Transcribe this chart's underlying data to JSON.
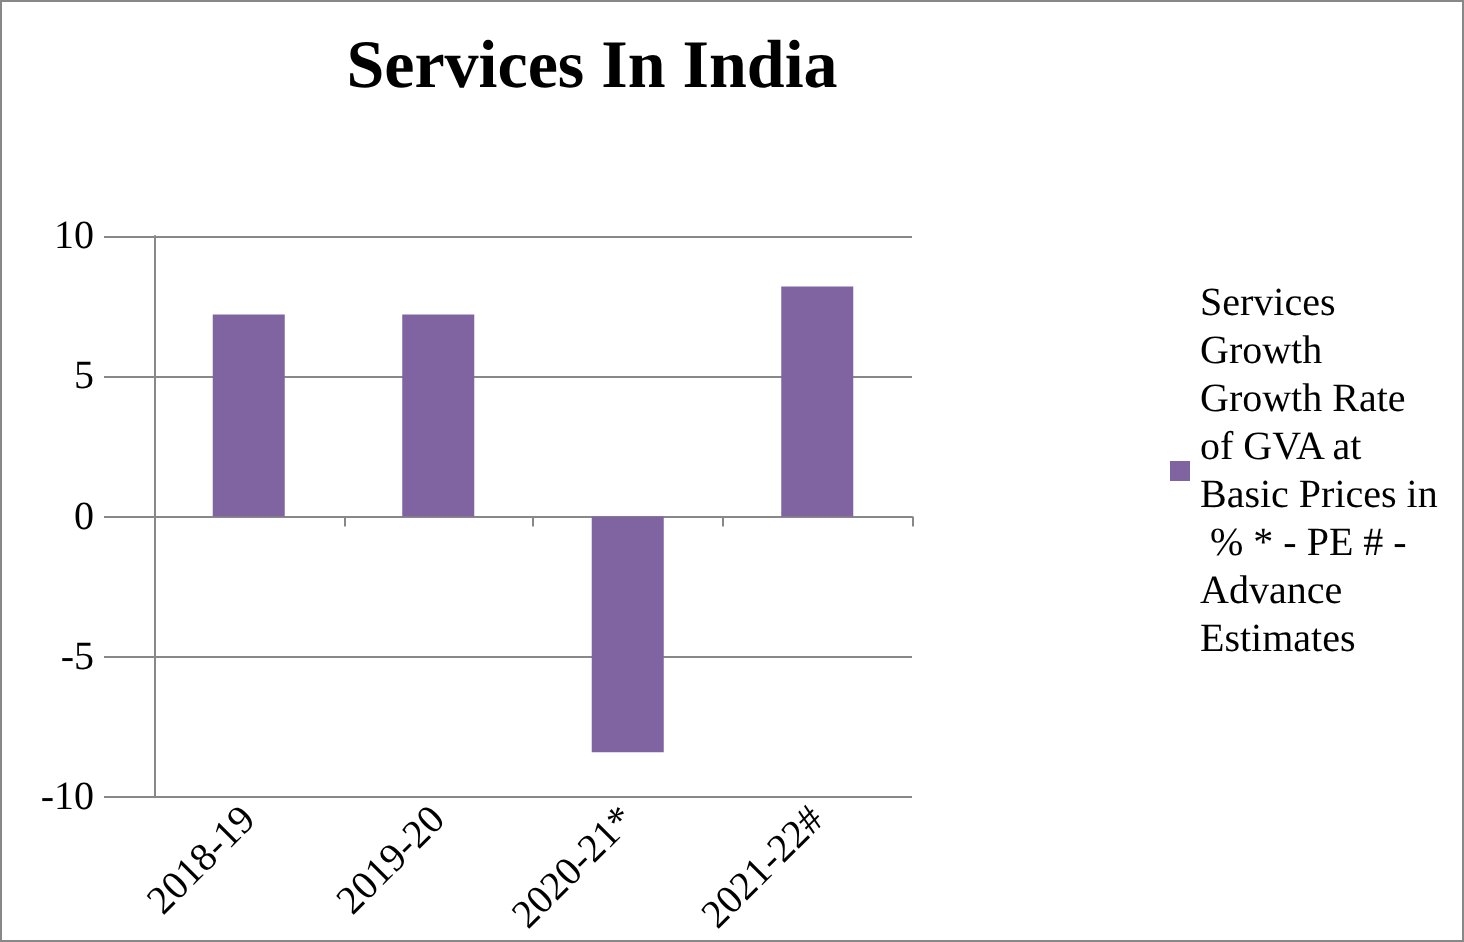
{
  "chart_data": {
    "type": "bar",
    "title": "Services In India",
    "categories": [
      "2018-19",
      "2019-20",
      "2020-21*",
      "2021-22#"
    ],
    "series": [
      {
        "name": "Services Growth Growth Rate of GVA at Basic Prices in % * - PE # - Advance Estimates",
        "color": "#8064a2",
        "values": [
          7.2,
          7.2,
          -8.4,
          8.2
        ]
      }
    ],
    "ylim": [
      -10,
      10
    ],
    "yticks": [
      -10,
      -5,
      0,
      5,
      10
    ],
    "grid": "y",
    "legend": "right"
  }
}
